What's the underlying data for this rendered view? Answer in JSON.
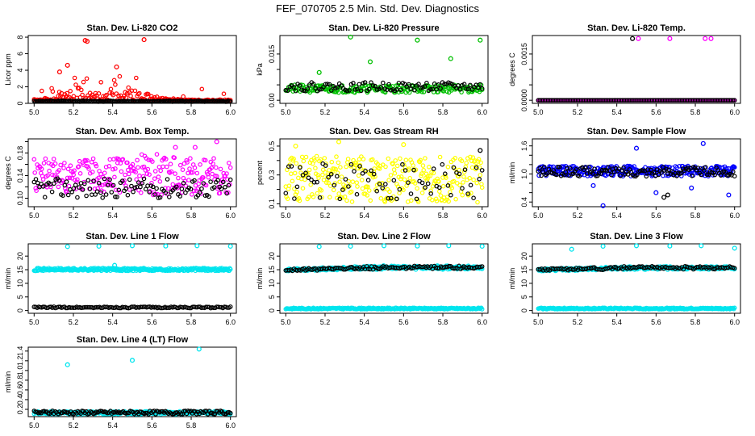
{
  "figure_title": "FEF_070705  2.5 Min. Std. Dev. Diagnostics",
  "chart_data": [
    {
      "type": "scatter",
      "title": "Stan. Dev. Li-820 CO2",
      "ylabel": "Licor ppm",
      "xlim": [
        4.97,
        6.03
      ],
      "ylim": [
        0,
        8.2
      ],
      "xticks": [
        5.0,
        5.2,
        5.4,
        5.6,
        5.8,
        6.0
      ],
      "yticks": [
        0,
        2,
        4,
        6,
        8
      ],
      "ytick_labels": [
        "0",
        "2",
        "4",
        "6",
        "8"
      ],
      "series": [
        {
          "color": "#ff0000",
          "gen": "band",
          "seed": 11,
          "n": 180,
          "base": 0.3,
          "spread": 0.15,
          "hump": 2.2,
          "hump_c": 5.35,
          "hump_w": 0.22,
          "tail": 0.25,
          "outliers": [
            [
              5.17,
              4.6
            ],
            [
              5.26,
              7.6
            ],
            [
              5.27,
              7.5
            ],
            [
              5.56,
              7.7
            ],
            [
              5.13,
              3.8
            ],
            [
              5.42,
              4.4
            ]
          ]
        },
        {
          "color": "#000000",
          "gen": "band",
          "seed": 12,
          "n": 160,
          "base": 0.2,
          "spread": 0.12
        }
      ]
    },
    {
      "type": "scatter",
      "title": "Stan. Dev. Li-820 Pressure",
      "ylabel": "kPa",
      "xlim": [
        4.97,
        6.03
      ],
      "ylim": [
        -0.001,
        0.021
      ],
      "xticks": [
        5.0,
        5.2,
        5.4,
        5.6,
        5.8,
        6.0
      ],
      "yticks": [
        0.0,
        0.005,
        0.01,
        0.015
      ],
      "ytick_labels": [
        "0.00",
        "",
        "",
        "0.015"
      ],
      "series": [
        {
          "color": "#00c000",
          "gen": "band",
          "seed": 21,
          "n": 220,
          "base": 0.0025,
          "spread": 0.0025,
          "outliers": [
            [
              5.33,
              0.0205
            ],
            [
              5.67,
              0.0195
            ],
            [
              5.84,
              0.0135
            ],
            [
              5.99,
              0.0195
            ],
            [
              5.43,
              0.0125
            ],
            [
              5.17,
              0.009
            ]
          ]
        },
        {
          "color": "#000000",
          "gen": "band",
          "seed": 22,
          "n": 100,
          "base": 0.003,
          "spread": 0.0028
        }
      ]
    },
    {
      "type": "scatter",
      "title": "Stan. Dev. Li-820 Temp.",
      "ylabel": "degrees C",
      "xlim": [
        4.97,
        6.03
      ],
      "ylim": [
        -0.0001,
        0.0021
      ],
      "xticks": [
        5.0,
        5.2,
        5.4,
        5.6,
        5.8,
        6.0
      ],
      "yticks": [
        0.0,
        0.0005,
        0.001,
        0.0015
      ],
      "ytick_labels": [
        "0.0000",
        "",
        "",
        "0.0015"
      ],
      "series": [
        {
          "color": "#ff00ff",
          "gen": "band",
          "seed": 31,
          "n": 200,
          "base": 0.0,
          "spread": 0.0,
          "outliers": [
            [
              5.51,
              0.002
            ],
            [
              5.67,
              0.002
            ],
            [
              5.85,
              0.002
            ],
            [
              5.88,
              0.002
            ]
          ]
        },
        {
          "color": "#000000",
          "gen": "band",
          "seed": 32,
          "n": 120,
          "base": 0.0,
          "spread": 0.0,
          "outliers": [
            [
              5.48,
              0.002
            ]
          ]
        }
      ]
    },
    {
      "type": "scatter",
      "title": "Stan. Dev. Amb. Box Temp.",
      "ylabel": "degrees C",
      "xlim": [
        4.97,
        6.03
      ],
      "ylim": [
        0.085,
        0.205
      ],
      "xticks": [
        5.0,
        5.2,
        5.4,
        5.6,
        5.8,
        6.0
      ],
      "yticks": [
        0.1,
        0.12,
        0.14,
        0.16,
        0.18,
        0.2
      ],
      "ytick_labels": [
        "0.10",
        "",
        "0.14",
        "",
        "0.18",
        ""
      ],
      "series": [
        {
          "color": "#ff00ff",
          "gen": "band",
          "seed": 41,
          "n": 260,
          "base": 0.105,
          "spread": 0.065,
          "hump": 0.01,
          "hump_c": 5.6,
          "hump_w": 0.3,
          "outliers": [
            [
              5.93,
              0.2
            ],
            [
              5.72,
              0.19
            ],
            [
              5.82,
              0.19
            ]
          ]
        },
        {
          "color": "#000000",
          "gen": "band",
          "seed": 42,
          "n": 110,
          "base": 0.1,
          "spread": 0.035
        }
      ]
    },
    {
      "type": "scatter",
      "title": "Stan. Dev. Gas Stream RH",
      "ylabel": "percent",
      "xlim": [
        4.97,
        6.03
      ],
      "ylim": [
        0.08,
        0.55
      ],
      "xticks": [
        5.0,
        5.2,
        5.4,
        5.6,
        5.8,
        6.0
      ],
      "yticks": [
        0.1,
        0.2,
        0.3,
        0.4,
        0.5
      ],
      "ytick_labels": [
        "0.1",
        "",
        "0.3",
        "",
        "0.5"
      ],
      "series": [
        {
          "color": "#ffff00",
          "gen": "band",
          "seed": 51,
          "n": 300,
          "base": 0.11,
          "spread": 0.32,
          "outliers": [
            [
              5.27,
              0.53
            ],
            [
              5.05,
              0.5
            ],
            [
              5.6,
              0.51
            ]
          ]
        },
        {
          "color": "#000000",
          "gen": "band",
          "seed": 52,
          "n": 70,
          "base": 0.13,
          "spread": 0.25,
          "outliers": [
            [
              5.99,
              0.47
            ]
          ]
        }
      ]
    },
    {
      "type": "scatter",
      "title": "Stan. Dev. Sample Flow",
      "ylabel": "ml/min",
      "xlim": [
        4.97,
        6.03
      ],
      "ylim": [
        0.3,
        1.75
      ],
      "xticks": [
        5.0,
        5.2,
        5.4,
        5.6,
        5.8,
        6.0
      ],
      "yticks": [
        0.4,
        0.6,
        0.8,
        1.0,
        1.2,
        1.4,
        1.6
      ],
      "ytick_labels": [
        "0.4",
        "",
        "",
        "1.0",
        "",
        "",
        "1.6"
      ],
      "series": [
        {
          "color": "#0000ff",
          "gen": "band",
          "seed": 61,
          "n": 300,
          "base": 0.95,
          "spread": 0.22,
          "outliers": [
            [
              5.33,
              0.32
            ],
            [
              5.5,
              1.55
            ],
            [
              5.84,
              1.65
            ],
            [
              5.97,
              0.55
            ],
            [
              5.6,
              0.6
            ],
            [
              5.78,
              0.7
            ],
            [
              5.28,
              0.75
            ]
          ]
        },
        {
          "color": "#000000",
          "gen": "band",
          "seed": 62,
          "n": 130,
          "base": 0.95,
          "spread": 0.2,
          "outliers": [
            [
              5.64,
              0.5
            ],
            [
              5.66,
              0.55
            ]
          ]
        }
      ]
    },
    {
      "type": "scatter",
      "title": "Stan. Dev. Line 1 Flow",
      "ylabel": "ml/min",
      "xlim": [
        4.97,
        6.03
      ],
      "ylim": [
        -1,
        24.5
      ],
      "xticks": [
        5.0,
        5.2,
        5.4,
        5.6,
        5.8,
        6.0
      ],
      "yticks": [
        0,
        5,
        10,
        15,
        20
      ],
      "ytick_labels": [
        "0",
        "5",
        "10",
        "15",
        "20"
      ],
      "series": [
        {
          "color": "#00e5ee",
          "gen": "band",
          "seed": 71,
          "n": 320,
          "base": 14.6,
          "spread": 1.0,
          "outliers": [
            [
              5.17,
              23.5
            ],
            [
              5.33,
              23.6
            ],
            [
              5.5,
              23.8
            ],
            [
              5.67,
              23.7
            ],
            [
              5.83,
              23.8
            ],
            [
              6.0,
              23.6
            ],
            [
              5.41,
              16.6
            ]
          ]
        },
        {
          "color": "#000000",
          "gen": "band",
          "seed": 72,
          "n": 130,
          "base": 0.9,
          "spread": 0.5
        }
      ]
    },
    {
      "type": "scatter",
      "title": "Stan. Dev. Line 2 Flow",
      "ylabel": "ml/min",
      "xlim": [
        4.97,
        6.03
      ],
      "ylim": [
        -1,
        24.5
      ],
      "xticks": [
        5.0,
        5.2,
        5.4,
        5.6,
        5.8,
        6.0
      ],
      "yticks": [
        0,
        5,
        10,
        15,
        20
      ],
      "ytick_labels": [
        "0",
        "5",
        "10",
        "15",
        "20"
      ],
      "series": [
        {
          "color": "#00e5ee",
          "gen": "band",
          "seed": 81,
          "n": 300,
          "base": 14.4,
          "spread": 1.0,
          "slope": 1.2,
          "outliers": [
            [
              5.17,
              23.5
            ],
            [
              5.33,
              23.6
            ],
            [
              5.5,
              23.8
            ],
            [
              5.67,
              23.7
            ],
            [
              5.83,
              23.8
            ],
            [
              6.0,
              23.6
            ]
          ]
        },
        {
          "color": "#00e5ee",
          "gen": "band",
          "seed": 83,
          "n": 250,
          "base": 0.5,
          "spread": 0.5
        },
        {
          "color": "#000000",
          "gen": "band",
          "seed": 82,
          "n": 120,
          "base": 14.5,
          "spread": 0.8,
          "slope": 1.2
        }
      ]
    },
    {
      "type": "scatter",
      "title": "Stan. Dev. Line 3 Flow",
      "ylabel": "ml/min",
      "xlim": [
        4.97,
        6.03
      ],
      "ylim": [
        -1,
        24.5
      ],
      "xticks": [
        5.0,
        5.2,
        5.4,
        5.6,
        5.8,
        6.0
      ],
      "yticks": [
        0,
        5,
        10,
        15,
        20
      ],
      "ytick_labels": [
        "0",
        "5",
        "10",
        "15",
        "20"
      ],
      "series": [
        {
          "color": "#00e5ee",
          "gen": "band",
          "seed": 91,
          "n": 300,
          "base": 14.4,
          "spread": 1.0,
          "slope": 1.0,
          "outliers": [
            [
              5.17,
              22.5
            ],
            [
              5.33,
              23.6
            ],
            [
              5.5,
              23.8
            ],
            [
              5.67,
              23.7
            ],
            [
              5.83,
              23.8
            ],
            [
              6.0,
              22.9
            ]
          ]
        },
        {
          "color": "#00e5ee",
          "gen": "band",
          "seed": 93,
          "n": 250,
          "base": 0.5,
          "spread": 0.5
        },
        {
          "color": "#000000",
          "gen": "band",
          "seed": 92,
          "n": 120,
          "base": 14.6,
          "spread": 0.8,
          "slope": 1.0
        }
      ]
    },
    {
      "type": "scatter",
      "title": "Stan. Dev. Line 4 (LT) Flow",
      "ylabel": "ml/min",
      "xlim": [
        4.97,
        6.03
      ],
      "ylim": [
        0.05,
        1.48
      ],
      "xticks": [
        5.0,
        5.2,
        5.4,
        5.6,
        5.8,
        6.0
      ],
      "yticks": [
        0.2,
        0.4,
        0.6,
        0.8,
        1.0,
        1.2,
        1.4
      ],
      "ytick_labels": [
        "0.2",
        "0.4",
        "0.6",
        "0.8",
        "1.0",
        "1.2",
        "1.4"
      ],
      "series": [
        {
          "color": "#00e5ee",
          "gen": "band",
          "seed": 101,
          "n": 300,
          "base": 0.1,
          "spread": 0.06,
          "outliers": [
            [
              5.17,
              1.12
            ],
            [
              5.5,
              1.21
            ],
            [
              5.84,
              1.44
            ]
          ]
        },
        {
          "color": "#000000",
          "gen": "band",
          "seed": 102,
          "n": 140,
          "base": 0.1,
          "spread": 0.07
        }
      ]
    }
  ]
}
